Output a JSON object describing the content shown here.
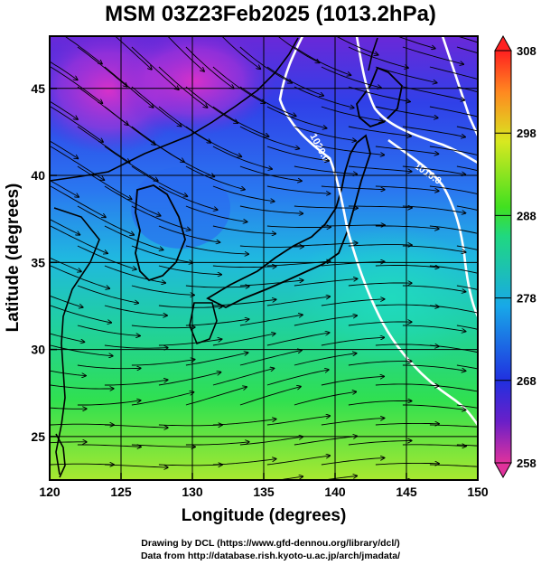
{
  "title": "MSM 03Z23Feb2025 (1013.2hPa)",
  "map": {
    "lon_range": [
      120,
      150
    ],
    "lat_range": [
      22.5,
      48
    ],
    "x_ticks": [
      120,
      125,
      130,
      135,
      140,
      145,
      150
    ],
    "y_ticks": [
      25,
      30,
      35,
      40,
      45
    ],
    "xlabel": "Longitude (degrees)",
    "ylabel": "Latitude  (degrees)",
    "grid": true,
    "isobar_labels": [
      "1020.0",
      "1016.0"
    ],
    "isobar_color": "#ffffff"
  },
  "colorbar": {
    "min": 258,
    "max": 308,
    "labels": [
      "308",
      "298",
      "288",
      "278",
      "268",
      "258"
    ],
    "colors": [
      "#e0329c",
      "#6a1fc8",
      "#2030e0",
      "#18a8e8",
      "#20d880",
      "#40e020",
      "#d8e820",
      "#ff8820",
      "#ff2020"
    ]
  },
  "footer": {
    "line1": "Drawing by DCL (https://www.gfd-dennou.org/library/dcl/)",
    "line2": "Data from http://database.rish.kyoto-u.ac.jp/arch/jmadata/"
  }
}
